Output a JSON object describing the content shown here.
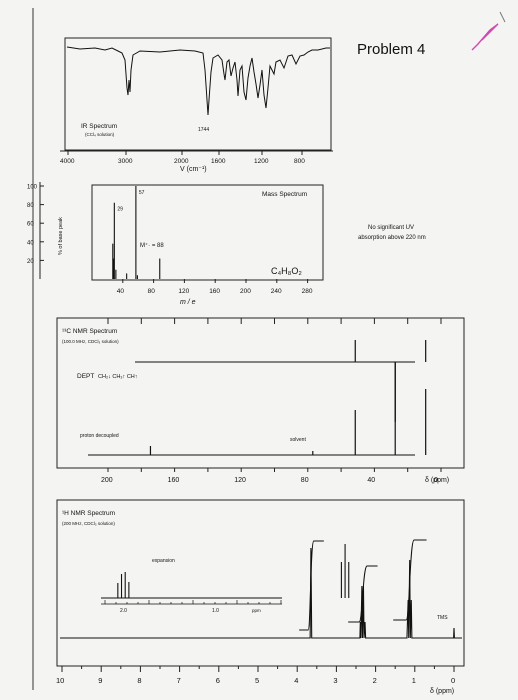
{
  "problem_title": "Problem 4",
  "ir": {
    "label": "IR Spectrum",
    "solvent": "(CCl₄ solution)",
    "peak_label": "1744",
    "axis_label": "V (cm⁻¹)",
    "ticks": [
      "4000",
      "3000",
      "2000",
      "1600",
      "1200",
      "800"
    ],
    "chart_data": {
      "type": "line",
      "xlabel": "V (cm⁻¹)",
      "xlim": [
        4000,
        600
      ],
      "peaks_cm1": [
        2980,
        2940,
        1744,
        1460,
        1380,
        1300,
        1240,
        1160,
        1100,
        1020,
        870
      ],
      "labeled_peak": 1744
    }
  },
  "mass": {
    "title": "Mass Spectrum",
    "ylabel": "% of base peak",
    "xlabel": "m / e",
    "molecular_ion": "M⁺· = 88",
    "formula": "C₄H₈O₂",
    "uv_note_1": "No significant UV",
    "uv_note_2": "absorption above 220 nm",
    "y_ticks": [
      "100",
      "80",
      "60",
      "40",
      "20"
    ],
    "x_ticks": [
      "40",
      "80",
      "120",
      "160",
      "200",
      "240",
      "280"
    ],
    "chart_data": {
      "type": "bar",
      "xlabel": "m / e",
      "ylabel": "% of base peak",
      "xlim": [
        0,
        300
      ],
      "ylim": [
        0,
        100
      ],
      "peaks": [
        {
          "mz": 27,
          "intensity": 38
        },
        {
          "mz": 28,
          "intensity": 22
        },
        {
          "mz": 29,
          "intensity": 82,
          "label": "29"
        },
        {
          "mz": 31,
          "intensity": 10
        },
        {
          "mz": 45,
          "intensity": 6
        },
        {
          "mz": 57,
          "intensity": 100,
          "label": "57"
        },
        {
          "mz": 59,
          "intensity": 4
        },
        {
          "mz": 88,
          "intensity": 22
        }
      ]
    }
  },
  "c13": {
    "title": "¹³C NMR Spectrum",
    "conditions": "(100.0 MHz, CDCl₃ solution)",
    "dept_label": "DEPT",
    "dept_modes": "CH₂↓ CH₃↑ CH↑",
    "decoupled_label": "proton decoupled",
    "solvent_label": "solvent",
    "x_ticks": [
      "200",
      "160",
      "120",
      "80",
      "40",
      "0"
    ],
    "axis_unit": "δ (ppm)",
    "chart_data": {
      "type": "bar",
      "xlabel": "δ (ppm)",
      "xlim": [
        220,
        0
      ],
      "decoupled_peaks_ppm": [
        174.5,
        77.0,
        51.5,
        27.5,
        9.2
      ],
      "dept_peaks": [
        {
          "ppm": 51.5,
          "direction": "up"
        },
        {
          "ppm": 27.5,
          "direction": "down"
        },
        {
          "ppm": 9.2,
          "direction": "up"
        }
      ]
    }
  },
  "h1": {
    "title": "¹H NMR Spectrum",
    "conditions": "(200 MHz, CDCl₃ solution)",
    "expansion_label": "expansion",
    "expansion_ticks": [
      "2.0",
      "1.0"
    ],
    "expansion_unit": "ppm",
    "tms_label": "TMS",
    "x_ticks": [
      "10",
      "9",
      "8",
      "7",
      "6",
      "5",
      "4",
      "3",
      "2",
      "1",
      "0"
    ],
    "axis_unit": "δ (ppm)",
    "chart_data": {
      "type": "line",
      "xlabel": "δ (ppm)",
      "xlim": [
        10,
        0
      ],
      "signals": [
        {
          "ppm": 3.65,
          "multiplicity": "singlet",
          "integral": 3
        },
        {
          "ppm": 2.32,
          "multiplicity": "quartet",
          "integral": 2
        },
        {
          "ppm": 1.13,
          "multiplicity": "triplet",
          "integral": 3
        },
        {
          "ppm": 0.0,
          "multiplicity": "singlet",
          "label": "TMS"
        }
      ]
    }
  }
}
